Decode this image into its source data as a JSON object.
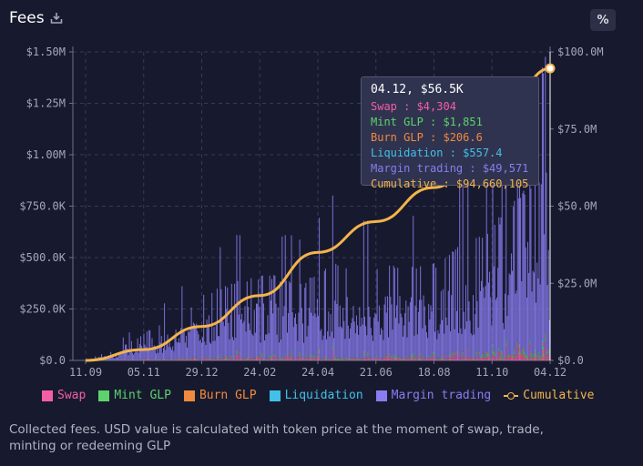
{
  "header": {
    "title": "Fees",
    "percent_label": "%"
  },
  "tooltip": {
    "title": "04.12, $56.5K",
    "rows": [
      {
        "text": "Swap : $4,304",
        "color": "#f45ea8"
      },
      {
        "text": "Mint GLP : $1,851",
        "color": "#5dd36b"
      },
      {
        "text": "Burn GLP : $206.6",
        "color": "#f08a3e"
      },
      {
        "text": "Liquidation : $557.4",
        "color": "#42c0e8"
      },
      {
        "text": "Margin trading : $49,571",
        "color": "#8a7cf0"
      },
      {
        "text": "Cumulative : $94,660,105",
        "color": "#f3b44b"
      }
    ]
  },
  "legend": [
    {
      "label": "Swap",
      "color": "#f45ea8",
      "kind": "box"
    },
    {
      "label": "Mint GLP",
      "color": "#5dd36b",
      "kind": "box"
    },
    {
      "label": "Burn GLP",
      "color": "#f08a3e",
      "kind": "box"
    },
    {
      "label": "Liquidation",
      "color": "#42c0e8",
      "kind": "box"
    },
    {
      "label": "Margin trading",
      "color": "#8a7cf0",
      "kind": "box"
    },
    {
      "label": "Cumulative",
      "color": "#f3b44b",
      "kind": "line"
    }
  ],
  "footnote": "Collected fees. USD value is calculated with token price at the moment of swap, trade, minting or redeeming GLP",
  "chart_data": {
    "type": "bar",
    "stacked": true,
    "title": "Fees",
    "x_ticks": [
      "11.09",
      "05.11",
      "29.12",
      "24.02",
      "24.04",
      "21.06",
      "18.08",
      "11.10",
      "04.12"
    ],
    "y_left": {
      "ticks": [
        "$0.0",
        "$250.0K",
        "$500.0K",
        "$750.0K",
        "$1.00M",
        "$1.25M",
        "$1.50M"
      ],
      "range": [
        0,
        1500000
      ]
    },
    "y_right": {
      "ticks": [
        "$0.0",
        "$25.0M",
        "$50.0M",
        "$75.0M",
        "$100.0M"
      ],
      "range": [
        0,
        100000000
      ]
    },
    "series": [
      {
        "name": "Swap",
        "color": "#f45ea8"
      },
      {
        "name": "Mint GLP",
        "color": "#5dd36b"
      },
      {
        "name": "Burn GLP",
        "color": "#f08a3e"
      },
      {
        "name": "Liquidation",
        "color": "#42c0e8"
      },
      {
        "name": "Margin trading",
        "color": "#8a7cf0"
      }
    ],
    "bar_count": 450,
    "margin_trading_envelope": [
      [
        0,
        5000
      ],
      [
        30,
        40000
      ],
      [
        60,
        110000
      ],
      [
        90,
        170000
      ],
      [
        120,
        260000
      ],
      [
        150,
        300000
      ],
      [
        180,
        320000
      ],
      [
        210,
        280000
      ],
      [
        240,
        380000
      ],
      [
        270,
        330000
      ],
      [
        300,
        360000
      ],
      [
        330,
        340000
      ],
      [
        360,
        420000
      ],
      [
        390,
        480000
      ],
      [
        420,
        620000
      ],
      [
        449,
        720000
      ]
    ],
    "cumulative": {
      "name": "Cumulative",
      "color": "#f3b44b",
      "x_ticks_index": [
        0,
        56,
        112,
        168,
        224,
        280,
        336,
        392,
        449
      ],
      "values_musd": [
        0,
        3.5,
        11,
        21,
        35,
        45,
        56,
        70,
        94.66
      ]
    },
    "highlight": {
      "label": "04.12",
      "total": 56500,
      "cumulative": 94660105
    }
  }
}
